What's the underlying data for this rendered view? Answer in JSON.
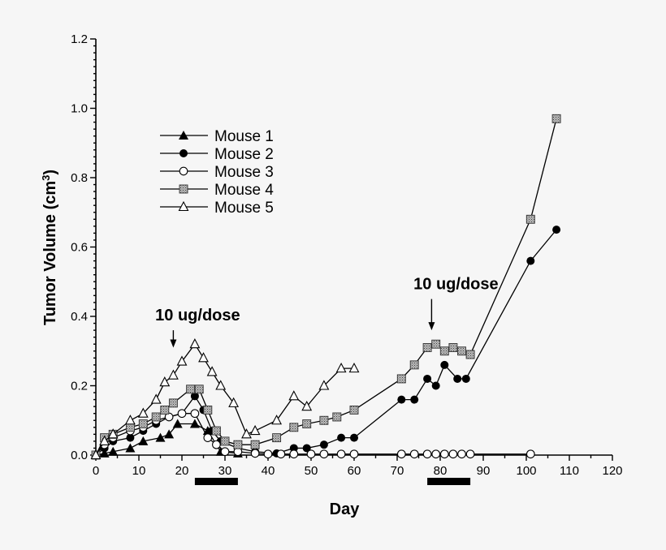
{
  "chart_data": {
    "type": "line",
    "title": "",
    "xlabel": "Day",
    "ylabel_main": "Tumor Volume (cm",
    "ylabel_sup": "3",
    "ylabel_close": ")",
    "xlim": [
      0,
      120
    ],
    "ylim": [
      0,
      1.2
    ],
    "xticks": [
      0,
      10,
      20,
      30,
      40,
      50,
      60,
      70,
      80,
      90,
      100,
      110,
      120
    ],
    "xtick_labels": [
      "0",
      "10",
      "20",
      "30",
      "40",
      "50",
      "60",
      "70",
      "80",
      "90",
      "100",
      "110",
      "120"
    ],
    "yticks": [
      0,
      0.2,
      0.4,
      0.6,
      0.8,
      1.0,
      1.2
    ],
    "ytick_labels": [
      "0.0",
      "0.2",
      "0.4",
      "0.6",
      "0.8",
      "1.0",
      "1.2"
    ],
    "legend_position": "upper-left",
    "series": [
      {
        "name": "Mouse 1",
        "marker": "filled-triangle",
        "x": [
          0,
          2,
          4,
          8,
          11,
          15,
          17,
          19,
          23,
          26,
          29,
          33
        ],
        "y": [
          0.0,
          0.005,
          0.01,
          0.02,
          0.04,
          0.05,
          0.06,
          0.09,
          0.09,
          0.07,
          0.01,
          0.005
        ]
      },
      {
        "name": "Mouse 2",
        "marker": "filled-circle",
        "x": [
          0,
          2,
          4,
          8,
          11,
          14,
          17,
          20,
          23,
          25,
          27,
          29,
          33,
          37,
          42,
          46,
          49,
          53,
          57,
          60,
          71,
          74,
          77,
          79,
          81,
          84,
          86,
          101,
          107
        ],
        "y": [
          0.0,
          0.02,
          0.04,
          0.05,
          0.07,
          0.09,
          0.11,
          0.12,
          0.17,
          0.13,
          0.07,
          0.04,
          0.02,
          0.01,
          0.005,
          0.02,
          0.02,
          0.03,
          0.05,
          0.05,
          0.16,
          0.16,
          0.22,
          0.2,
          0.26,
          0.22,
          0.22,
          0.56,
          0.65
        ]
      },
      {
        "name": "Mouse 3",
        "marker": "open-circle",
        "x": [
          0,
          2,
          4,
          8,
          11,
          14,
          17,
          20,
          23,
          26,
          28,
          30,
          33,
          37,
          40,
          43,
          46,
          50,
          53,
          57,
          60,
          71,
          74,
          77,
          79,
          81,
          83,
          85,
          87,
          101
        ],
        "y": [
          0.0,
          0.03,
          0.05,
          0.07,
          0.08,
          0.1,
          0.11,
          0.12,
          0.12,
          0.05,
          0.03,
          0.01,
          0.01,
          0.005,
          0.003,
          0.003,
          0.003,
          0.003,
          0.003,
          0.003,
          0.003,
          0.003,
          0.003,
          0.003,
          0.003,
          0.003,
          0.003,
          0.003,
          0.003,
          0.003
        ]
      },
      {
        "name": "Mouse 4",
        "marker": "shaded-square",
        "x": [
          0,
          2,
          4,
          8,
          11,
          14,
          16,
          18,
          22,
          24,
          26,
          28,
          30,
          33,
          37,
          42,
          46,
          49,
          53,
          56,
          60,
          71,
          74,
          77,
          79,
          81,
          83,
          85,
          87,
          101,
          107
        ],
        "y": [
          0.0,
          0.05,
          0.06,
          0.08,
          0.09,
          0.11,
          0.13,
          0.15,
          0.19,
          0.19,
          0.13,
          0.07,
          0.04,
          0.03,
          0.03,
          0.05,
          0.08,
          0.09,
          0.1,
          0.11,
          0.13,
          0.22,
          0.26,
          0.31,
          0.32,
          0.3,
          0.31,
          0.3,
          0.29,
          0.68,
          0.97
        ]
      },
      {
        "name": "Mouse 5",
        "marker": "open-triangle",
        "x": [
          0,
          2,
          4,
          8,
          11,
          14,
          16,
          18,
          20,
          23,
          25,
          27,
          29,
          32,
          35,
          37,
          42,
          46,
          49,
          53,
          57,
          60
        ],
        "y": [
          0.0,
          0.04,
          0.06,
          0.1,
          0.12,
          0.16,
          0.21,
          0.23,
          0.27,
          0.32,
          0.28,
          0.24,
          0.2,
          0.15,
          0.06,
          0.07,
          0.1,
          0.17,
          0.14,
          0.2,
          0.25,
          0.25
        ]
      }
    ],
    "annotations": [
      {
        "text": "10 ug/dose",
        "arrow_x": 18,
        "arrow_top": 0.36,
        "arrow_bottom": 0.31
      },
      {
        "text": "10 ug/dose",
        "arrow_x": 78,
        "arrow_top": 0.45,
        "arrow_bottom": 0.36
      }
    ],
    "treatment_bars": [
      {
        "start": 23,
        "end": 33
      },
      {
        "start": 77,
        "end": 87
      }
    ]
  }
}
